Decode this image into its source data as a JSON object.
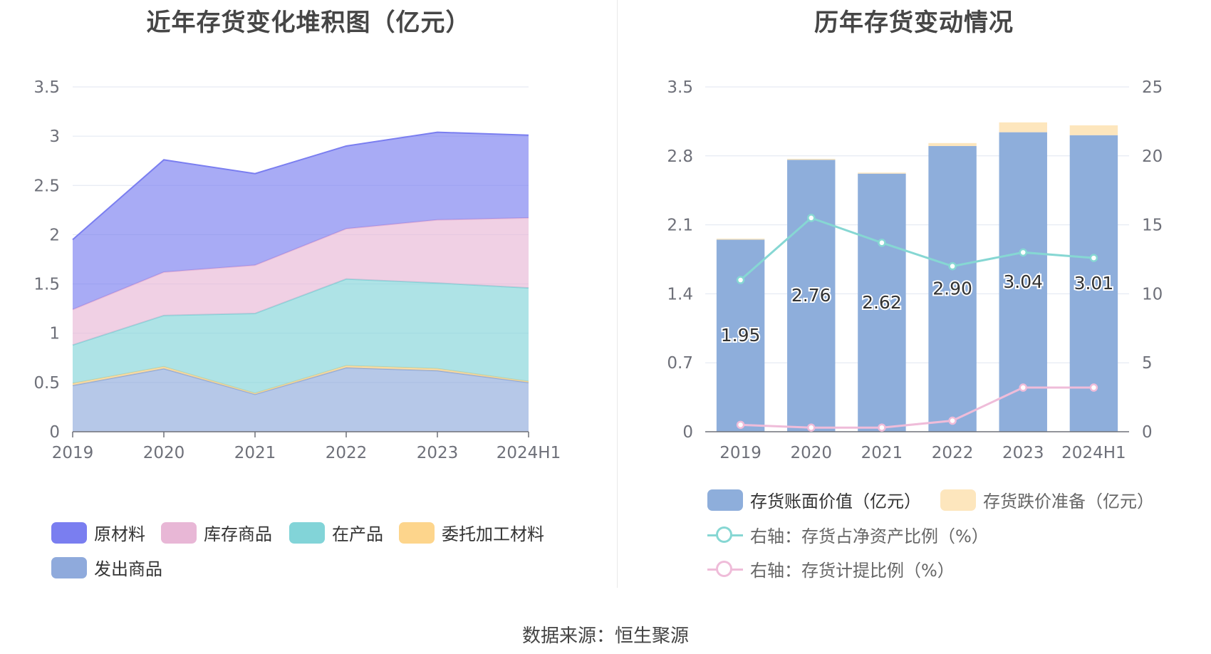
{
  "left_title": "近年存货变化堆积图（亿元）",
  "right_title": "历年存货变动情况",
  "source": "数据来源：恒生聚源",
  "chart_data": [
    {
      "type": "area",
      "stacked": true,
      "title": "近年存货变化堆积图（亿元）",
      "categories": [
        "2019",
        "2020",
        "2021",
        "2022",
        "2023",
        "2024H1"
      ],
      "y_ticks": [
        "0",
        "0.5",
        "1",
        "1.5",
        "2",
        "2.5",
        "3",
        "3.5"
      ],
      "ylim": [
        0,
        3.5
      ],
      "legend_position": "bottom-left",
      "series": [
        {
          "name": "发出商品",
          "color": "#8faadc",
          "values": [
            0.47,
            0.64,
            0.38,
            0.65,
            0.62,
            0.5
          ]
        },
        {
          "name": "委托加工材料",
          "color": "#fdd58c",
          "values": [
            0.02,
            0.02,
            0.01,
            0.02,
            0.02,
            0.01
          ]
        },
        {
          "name": "在产品",
          "color": "#82d4d8",
          "values": [
            0.39,
            0.52,
            0.81,
            0.88,
            0.87,
            0.95
          ]
        },
        {
          "name": "库存商品",
          "color": "#e8b7d6",
          "values": [
            0.36,
            0.44,
            0.49,
            0.51,
            0.64,
            0.71
          ]
        },
        {
          "name": "原材料",
          "color": "#7a7ef0",
          "values": [
            0.71,
            1.14,
            0.93,
            0.84,
            0.89,
            0.84
          ]
        }
      ],
      "legend_order": [
        "原材料",
        "库存商品",
        "在产品",
        "委托加工材料",
        "发出商品"
      ]
    },
    {
      "type": "bar",
      "stacked": true,
      "title": "历年存货变动情况",
      "categories": [
        "2019",
        "2020",
        "2021",
        "2022",
        "2023",
        "2024H1"
      ],
      "y_ticks_left": [
        "0",
        "0.7",
        "1.4",
        "2.1",
        "2.8",
        "3.5"
      ],
      "ylim_left": [
        0,
        3.5
      ],
      "y_ticks_right": [
        "0",
        "5",
        "10",
        "15",
        "20",
        "25"
      ],
      "ylim_right": [
        0,
        25
      ],
      "legend_position": "bottom",
      "bar_series": [
        {
          "name": "存货账面价值（亿元）",
          "color": "#8eaedb",
          "values": [
            1.95,
            2.76,
            2.62,
            2.9,
            3.04,
            3.01
          ]
        },
        {
          "name": "存货跌价准备（亿元）",
          "color": "#fde6bd",
          "values": [
            0.01,
            0.01,
            0.01,
            0.03,
            0.1,
            0.1
          ]
        }
      ],
      "bar_labels": [
        "1.95",
        "2.76",
        "2.62",
        "2.90",
        "3.04",
        "3.01"
      ],
      "line_series": [
        {
          "name": "右轴：存货占净资产比例（%）",
          "color": "#86d7d3",
          "values": [
            11.0,
            15.5,
            13.7,
            12.0,
            13.0,
            12.6
          ]
        },
        {
          "name": "右轴：存货计提比例（%）",
          "color": "#efbcd9",
          "values": [
            0.5,
            0.3,
            0.3,
            0.8,
            3.2,
            3.2
          ]
        }
      ]
    }
  ]
}
